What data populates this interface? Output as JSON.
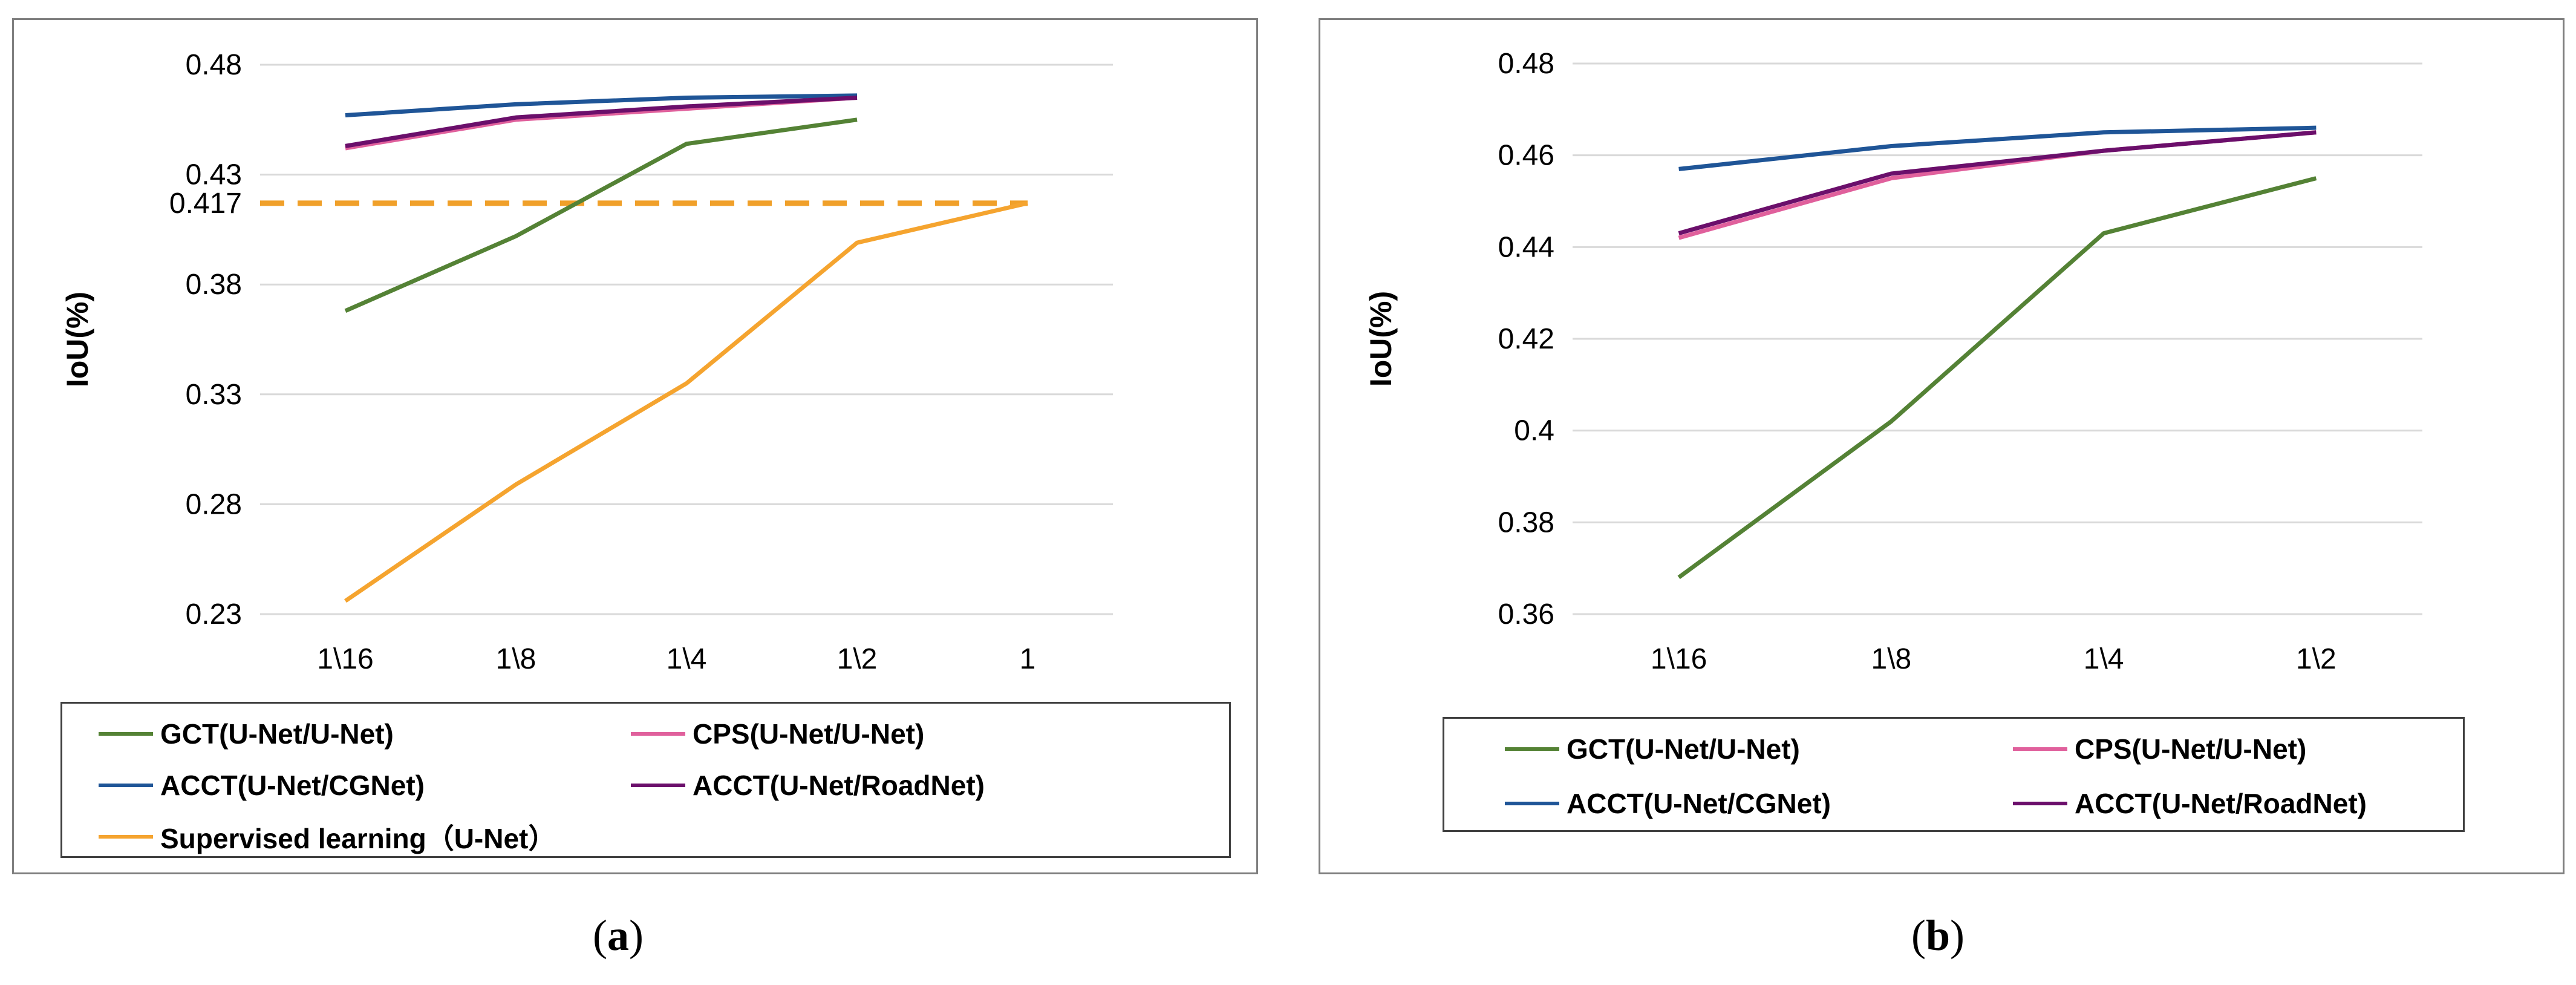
{
  "chart_data": [
    {
      "id": "a",
      "type": "line",
      "caption": "a",
      "ylabel": "IoU(%)",
      "xlabel": "",
      "categories": [
        "1\\16",
        "1\\8",
        "1\\4",
        "1\\2",
        "1"
      ],
      "ylim": [
        0.23,
        0.48
      ],
      "yticks": [
        "0.23",
        "0.28",
        "0.33",
        "0.38",
        "0.43",
        "0.48"
      ],
      "annotation": {
        "label": "0.417",
        "value": 0.417,
        "style": "dashed",
        "color": "#f0a02a"
      },
      "grid": true,
      "legend_position": "bottom",
      "series": [
        {
          "name": "GCT(U-Net/U-Net)",
          "color": "#548235",
          "values": [
            0.368,
            0.402,
            0.444,
            0.455,
            null
          ]
        },
        {
          "name": "CPS(U-Net/U-Net)",
          "color": "#e0609c",
          "values": [
            0.442,
            0.455,
            0.46,
            0.465,
            null
          ]
        },
        {
          "name": "ACCT(U-Net/CGNet)",
          "color": "#1f5597",
          "values": [
            0.457,
            0.462,
            0.465,
            0.466,
            null
          ]
        },
        {
          "name": "ACCT(U-Net/RoadNet)",
          "color": "#6b0f6b",
          "values": [
            0.443,
            0.456,
            0.461,
            0.465,
            null
          ]
        },
        {
          "name": "Supervised learning（U-Net）",
          "color": "#f5a42f",
          "values": [
            0.236,
            0.289,
            0.335,
            0.399,
            0.417
          ]
        }
      ]
    },
    {
      "id": "b",
      "type": "line",
      "caption": "b",
      "ylabel": "IoU(%)",
      "xlabel": "",
      "categories": [
        "1\\16",
        "1\\8",
        "1\\4",
        "1\\2"
      ],
      "ylim": [
        0.36,
        0.48
      ],
      "yticks": [
        "0.36",
        "0.38",
        "0.4",
        "0.42",
        "0.44",
        "0.46",
        "0.48"
      ],
      "grid": true,
      "legend_position": "bottom",
      "series": [
        {
          "name": "GCT(U-Net/U-Net)",
          "color": "#548235",
          "values": [
            0.368,
            0.402,
            0.443,
            0.455
          ]
        },
        {
          "name": "CPS(U-Net/U-Net)",
          "color": "#e0609c",
          "values": [
            0.442,
            0.455,
            0.461,
            0.465
          ]
        },
        {
          "name": "ACCT(U-Net/CGNet)",
          "color": "#1f5597",
          "values": [
            0.457,
            0.462,
            0.465,
            0.466
          ]
        },
        {
          "name": "ACCT(U-Net/RoadNet)",
          "color": "#6b0f6b",
          "values": [
            0.443,
            0.456,
            0.461,
            0.465
          ]
        }
      ]
    }
  ]
}
